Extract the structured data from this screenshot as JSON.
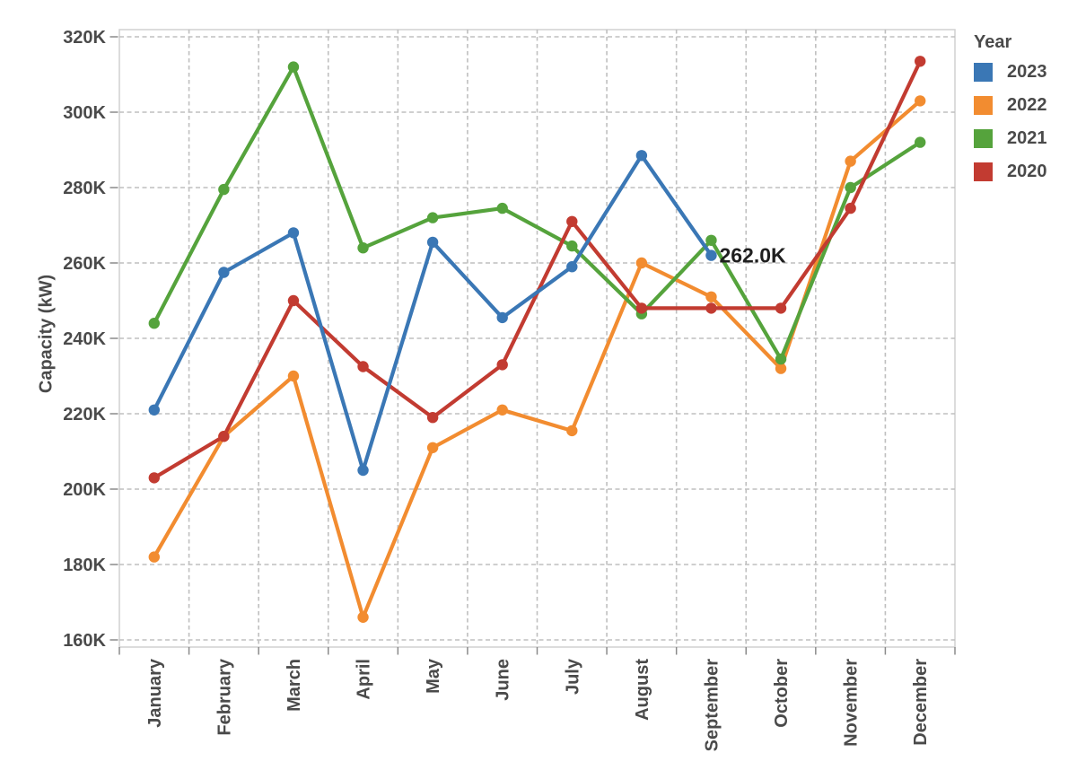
{
  "chart_data": {
    "type": "line",
    "title": "",
    "ylabel": "Capacity (kW)",
    "xlabel": "",
    "y_unit": "kW",
    "ylim_k": [
      160,
      320
    ],
    "ytick_step_k": 20,
    "ytick_labels": [
      "160K",
      "180K",
      "200K",
      "220K",
      "240K",
      "260K",
      "280K",
      "300K",
      "320K"
    ],
    "categories": [
      "January",
      "February",
      "March",
      "April",
      "May",
      "June",
      "July",
      "August",
      "September",
      "October",
      "November",
      "December"
    ],
    "legend": {
      "title": "Year",
      "position": "top-right",
      "entries": [
        "2023",
        "2022",
        "2021",
        "2020"
      ]
    },
    "grid": {
      "horizontal": true,
      "vertical": true,
      "style": "dashed"
    },
    "series": [
      {
        "name": "2023",
        "color": "#3a77b5",
        "values_k": [
          221,
          257.5,
          268,
          205,
          265.5,
          245.5,
          259,
          288.5,
          262
        ]
      },
      {
        "name": "2022",
        "color": "#f28c30",
        "values_k": [
          182,
          214,
          230,
          166,
          211,
          221,
          215.5,
          260,
          251,
          232,
          287,
          303
        ]
      },
      {
        "name": "2021",
        "color": "#55a33c",
        "values_k": [
          244,
          279.5,
          312,
          264,
          272,
          274.5,
          264.5,
          246.5,
          266,
          234.5,
          280,
          292
        ]
      },
      {
        "name": "2020",
        "color": "#c23b31",
        "values_k": [
          203,
          214,
          250,
          232.5,
          219,
          233,
          271,
          248,
          248,
          248,
          274.5,
          313.5
        ]
      }
    ],
    "annotation": {
      "text": "262.0K",
      "series": "2023",
      "category": "September"
    }
  },
  "style": {
    "background": "#ffffff",
    "axis_text_color": "#4a4a4a",
    "grid_color": "#bfbfbf",
    "tick_color": "#8a8a8a",
    "plot_border_color": "#d0d0d0",
    "annotation_color": "#1f1f1f"
  }
}
